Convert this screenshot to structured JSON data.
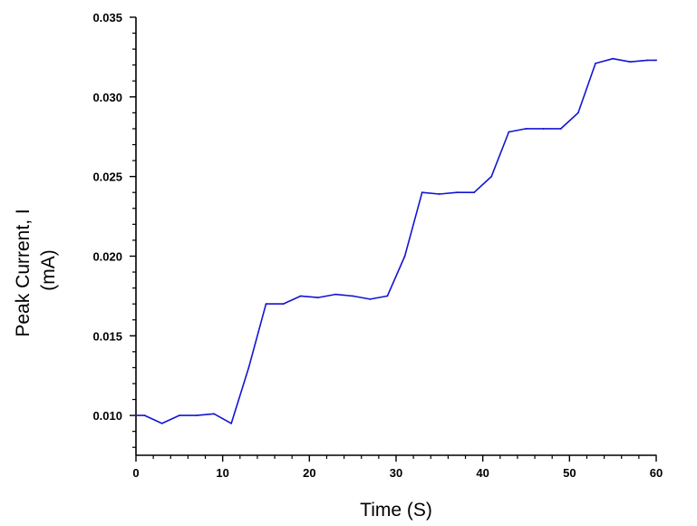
{
  "chart_data": {
    "type": "line",
    "xlabel": "Time (S)",
    "ylabel_lines": [
      "Peak Current, I",
      "(mA)"
    ],
    "xlim": [
      0,
      60
    ],
    "ylim": [
      0.0075,
      0.035
    ],
    "x_ticks": [
      0,
      10,
      20,
      30,
      40,
      50,
      60
    ],
    "x_tick_labels": [
      "0",
      "10",
      "20",
      "30",
      "40",
      "50",
      "60"
    ],
    "x_minor_step": 2,
    "y_ticks": [
      0.01,
      0.015,
      0.02,
      0.025,
      0.03,
      0.035
    ],
    "y_tick_labels": [
      "0.010",
      "0.015",
      "0.020",
      "0.025",
      "0.030",
      "0.035"
    ],
    "y_minor_step": 0.001,
    "grid": false,
    "colors": {
      "line": "#1414d2",
      "axis": "#000000"
    },
    "series": [
      {
        "x": [
          0,
          1,
          3,
          5,
          7,
          9,
          11,
          13,
          15,
          17,
          19,
          21,
          23,
          25,
          27,
          29,
          31,
          33,
          35,
          37,
          39,
          41,
          43,
          45,
          47,
          49,
          51,
          53,
          55,
          57,
          59,
          60
        ],
        "y": [
          0.01,
          0.01,
          0.0095,
          0.01,
          0.01,
          0.0101,
          0.0095,
          0.013,
          0.017,
          0.017,
          0.0175,
          0.0174,
          0.0176,
          0.0175,
          0.0173,
          0.0175,
          0.02,
          0.024,
          0.0239,
          0.024,
          0.024,
          0.025,
          0.0278,
          0.028,
          0.028,
          0.028,
          0.029,
          0.0321,
          0.0324,
          0.0322,
          0.0323,
          0.0323
        ]
      }
    ]
  }
}
